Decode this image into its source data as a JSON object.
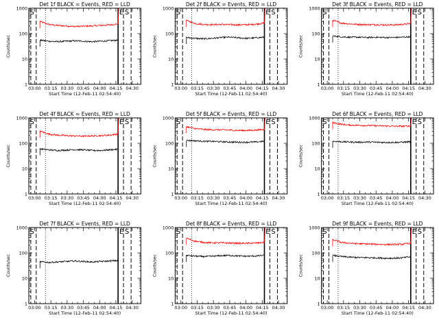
{
  "figure": {
    "background": "#ffffff",
    "colors": {
      "events": "#000000",
      "lld": "#ff0000"
    }
  },
  "chart_data": [
    {
      "type": "line",
      "title": "Det 1f BLACK = Events, RED = LLD",
      "xlabel": "Start Time (12-Feb-11 02:54:40)",
      "ylabel": "Counts/sec",
      "yscale": "log",
      "ylim": [
        1,
        1000
      ],
      "xlim": [
        "02:54:40",
        "04:38:00"
      ],
      "x_ticks": [
        "03:00",
        "03:15",
        "03:30",
        "03:45",
        "04:00",
        "04:15",
        "04:30"
      ],
      "y_ticks": [
        "1",
        "10",
        "100",
        "1000"
      ],
      "markers": {
        "start": "S",
        "end": [
          "E",
          "S"
        ]
      },
      "series": [
        {
          "color": "#ff0000",
          "start": "03:05",
          "end": "04:17",
          "levels": [
            300,
            230,
            210,
            200,
            190,
            195,
            200,
            210,
            220,
            240
          ],
          "spike": 1000
        },
        {
          "color": "#000000",
          "start": "03:05",
          "end": "04:17",
          "levels": [
            55,
            50,
            48,
            50,
            52,
            50,
            48,
            50,
            52,
            55
          ]
        }
      ]
    },
    {
      "type": "line",
      "title": "Det 2f BLACK = Events, RED = LLD",
      "xlabel": "Start Time (12-Feb-11 02:54:40)",
      "ylabel": "Counts/sec",
      "yscale": "log",
      "ylim": [
        1,
        1000
      ],
      "xlim": [
        "02:54:40",
        "04:38:00"
      ],
      "x_ticks": [
        "03:00",
        "03:15",
        "03:30",
        "03:45",
        "04:00",
        "04:15",
        "04:30"
      ],
      "y_ticks": [
        "1",
        "10",
        "100",
        "1000"
      ],
      "markers": {
        "start": "S",
        "end": [
          "E",
          "S"
        ]
      },
      "series": [
        {
          "color": "#ff0000",
          "start": "03:05",
          "end": "04:17",
          "levels": [
            330,
            250,
            230,
            225,
            230,
            225,
            220,
            225,
            235,
            260
          ],
          "spike": 1000
        },
        {
          "color": "#000000",
          "start": "03:05",
          "end": "04:17",
          "levels": [
            70,
            65,
            62,
            65,
            70,
            72,
            68,
            65,
            68,
            72
          ]
        }
      ]
    },
    {
      "type": "line",
      "title": "Det 3f BLACK = Events, RED = LLD",
      "xlabel": "Start Time (12-Feb-11 02:54:40)",
      "ylabel": "Counts/sec",
      "yscale": "log",
      "ylim": [
        1,
        1000
      ],
      "xlim": [
        "02:54:40",
        "04:38:00"
      ],
      "x_ticks": [
        "03:00",
        "03:15",
        "03:30",
        "03:45",
        "04:00",
        "04:15",
        "04:30"
      ],
      "y_ticks": [
        "1",
        "10",
        "100",
        "1000"
      ],
      "markers": {
        "start": "S",
        "end": [
          "E",
          "S"
        ]
      },
      "series": [
        {
          "color": "#ff0000",
          "start": "03:05",
          "end": "04:17",
          "levels": [
            330,
            260,
            240,
            230,
            225,
            225,
            220,
            220,
            230,
            250
          ],
          "spike": 1000
        },
        {
          "color": "#000000",
          "start": "03:05",
          "end": "04:17",
          "levels": [
            80,
            75,
            72,
            72,
            70,
            72,
            70,
            70,
            72,
            75
          ]
        }
      ]
    },
    {
      "type": "line",
      "title": "Det 4f BLACK = Events, RED = LLD",
      "xlabel": "Start Time (12-Feb-11 02:54:40)",
      "ylabel": "Counts/sec",
      "yscale": "log",
      "ylim": [
        1,
        1000
      ],
      "xlim": [
        "02:54:40",
        "04:38:00"
      ],
      "x_ticks": [
        "03:00",
        "03:15",
        "03:30",
        "03:45",
        "04:00",
        "04:15",
        "04:30"
      ],
      "y_ticks": [
        "1",
        "10",
        "100",
        "1000"
      ],
      "markers": {
        "start": "S",
        "end": [
          "E",
          "S"
        ]
      },
      "series": [
        {
          "color": "#ff0000",
          "start": "03:05",
          "end": "04:17",
          "levels": [
            300,
            230,
            210,
            200,
            195,
            190,
            195,
            200,
            210,
            230
          ],
          "spike": 1000
        },
        {
          "color": "#000000",
          "start": "03:05",
          "end": "04:17",
          "levels": [
            60,
            55,
            52,
            54,
            56,
            55,
            52,
            52,
            55,
            58
          ]
        }
      ]
    },
    {
      "type": "line",
      "title": "Det 5f BLACK = Events, RED = LLD",
      "xlabel": "Start Time (12-Feb-11 02:54:40)",
      "ylabel": "Counts/sec",
      "yscale": "log",
      "ylim": [
        1,
        1000
      ],
      "xlim": [
        "02:54:40",
        "04:38:00"
      ],
      "x_ticks": [
        "03:00",
        "03:15",
        "03:30",
        "03:45",
        "04:00",
        "04:15",
        "04:30"
      ],
      "y_ticks": [
        "1",
        "10",
        "100",
        "1000"
      ],
      "markers": {
        "start": "S",
        "end": [
          "E",
          "S"
        ]
      },
      "series": [
        {
          "color": "#ff0000",
          "start": "03:05",
          "end": "04:17",
          "levels": [
            450,
            380,
            350,
            340,
            340,
            330,
            320,
            320,
            330,
            350
          ],
          "spike": 1000
        },
        {
          "color": "#000000",
          "start": "03:05",
          "end": "04:17",
          "levels": [
            130,
            125,
            120,
            118,
            115,
            112,
            110,
            110,
            112,
            120
          ]
        }
      ]
    },
    {
      "type": "line",
      "title": "Det 6f BLACK = Events, RED = LLD",
      "xlabel": "Start Time (12-Feb-11 02:54:40)",
      "ylabel": "Counts/sec",
      "yscale": "log",
      "ylim": [
        1,
        1000
      ],
      "xlim": [
        "02:54:40",
        "04:38:00"
      ],
      "x_ticks": [
        "03:00",
        "03:15",
        "03:30",
        "03:45",
        "04:00",
        "04:15",
        "04:30"
      ],
      "y_ticks": [
        "1",
        "10",
        "100",
        "1000"
      ],
      "markers": {
        "start": "S",
        "end": [
          "E",
          "S"
        ]
      },
      "series": [
        {
          "color": "#ff0000",
          "start": "03:05",
          "end": "04:17",
          "levels": [
            650,
            560,
            520,
            510,
            500,
            490,
            480,
            470,
            470,
            480
          ],
          "spike": 1000
        },
        {
          "color": "#000000",
          "start": "03:05",
          "end": "04:17",
          "levels": [
            120,
            115,
            112,
            110,
            112,
            110,
            108,
            108,
            110,
            115
          ]
        }
      ]
    },
    {
      "type": "line",
      "title": "Det 7f BLACK = Events, RED = LLD",
      "xlabel": "Start Time (12-Feb-11 02:54:40)",
      "ylabel": "Counts/sec",
      "yscale": "log",
      "ylim": [
        1,
        1000
      ],
      "xlim": [
        "02:54:40",
        "04:38:00"
      ],
      "x_ticks": [
        "03:00",
        "03:15",
        "03:30",
        "03:45",
        "04:00",
        "04:15",
        "04:30"
      ],
      "y_ticks": [
        "1",
        "10",
        "100",
        "1000"
      ],
      "markers": {
        "start": "S",
        "end": [
          "E",
          "S"
        ]
      },
      "series": [
        {
          "color": "#000000",
          "start": "03:05",
          "end": "04:17",
          "levels": [
            45,
            42,
            44,
            46,
            48,
            46,
            44,
            46,
            48,
            50
          ]
        }
      ]
    },
    {
      "type": "line",
      "title": "Det 8f BLACK = Events, RED = LLD",
      "xlabel": "Start Time (12-Feb-11 02:54:40)",
      "ylabel": "Counts/sec",
      "yscale": "log",
      "ylim": [
        1,
        1000
      ],
      "xlim": [
        "02:54:40",
        "04:38:00"
      ],
      "x_ticks": [
        "03:00",
        "03:15",
        "03:30",
        "03:45",
        "04:00",
        "04:15",
        "04:30"
      ],
      "y_ticks": [
        "1",
        "10",
        "100",
        "1000"
      ],
      "markers": {
        "start": "S",
        "end": [
          "E",
          "S"
        ]
      },
      "series": [
        {
          "color": "#ff0000",
          "start": "03:05",
          "end": "04:17",
          "levels": [
            380,
            290,
            260,
            250,
            250,
            245,
            240,
            240,
            245,
            260
          ],
          "spike": 1000
        },
        {
          "color": "#000000",
          "start": "03:05",
          "end": "04:17",
          "levels": [
            80,
            75,
            72,
            74,
            78,
            80,
            76,
            74,
            76,
            80
          ]
        }
      ]
    },
    {
      "type": "line",
      "title": "Det 9f BLACK = Events, RED = LLD",
      "xlabel": "Start Time (12-Feb-11 02:54:40)",
      "ylabel": "Counts/sec",
      "yscale": "log",
      "ylim": [
        1,
        1000
      ],
      "xlim": [
        "02:54:40",
        "04:38:00"
      ],
      "x_ticks": [
        "03:00",
        "03:15",
        "03:30",
        "03:45",
        "04:00",
        "04:15",
        "04:30"
      ],
      "y_ticks": [
        "1",
        "10",
        "100",
        "1000"
      ],
      "markers": {
        "start": "S",
        "end": [
          "E",
          "S"
        ]
      },
      "series": [
        {
          "color": "#ff0000",
          "start": "03:05",
          "end": "04:17",
          "levels": [
            330,
            260,
            240,
            230,
            225,
            220,
            215,
            215,
            220,
            240
          ],
          "spike": 1000
        },
        {
          "color": "#000000",
          "start": "03:05",
          "end": "04:17",
          "levels": [
            80,
            72,
            68,
            66,
            65,
            64,
            62,
            62,
            64,
            70
          ]
        }
      ]
    }
  ]
}
